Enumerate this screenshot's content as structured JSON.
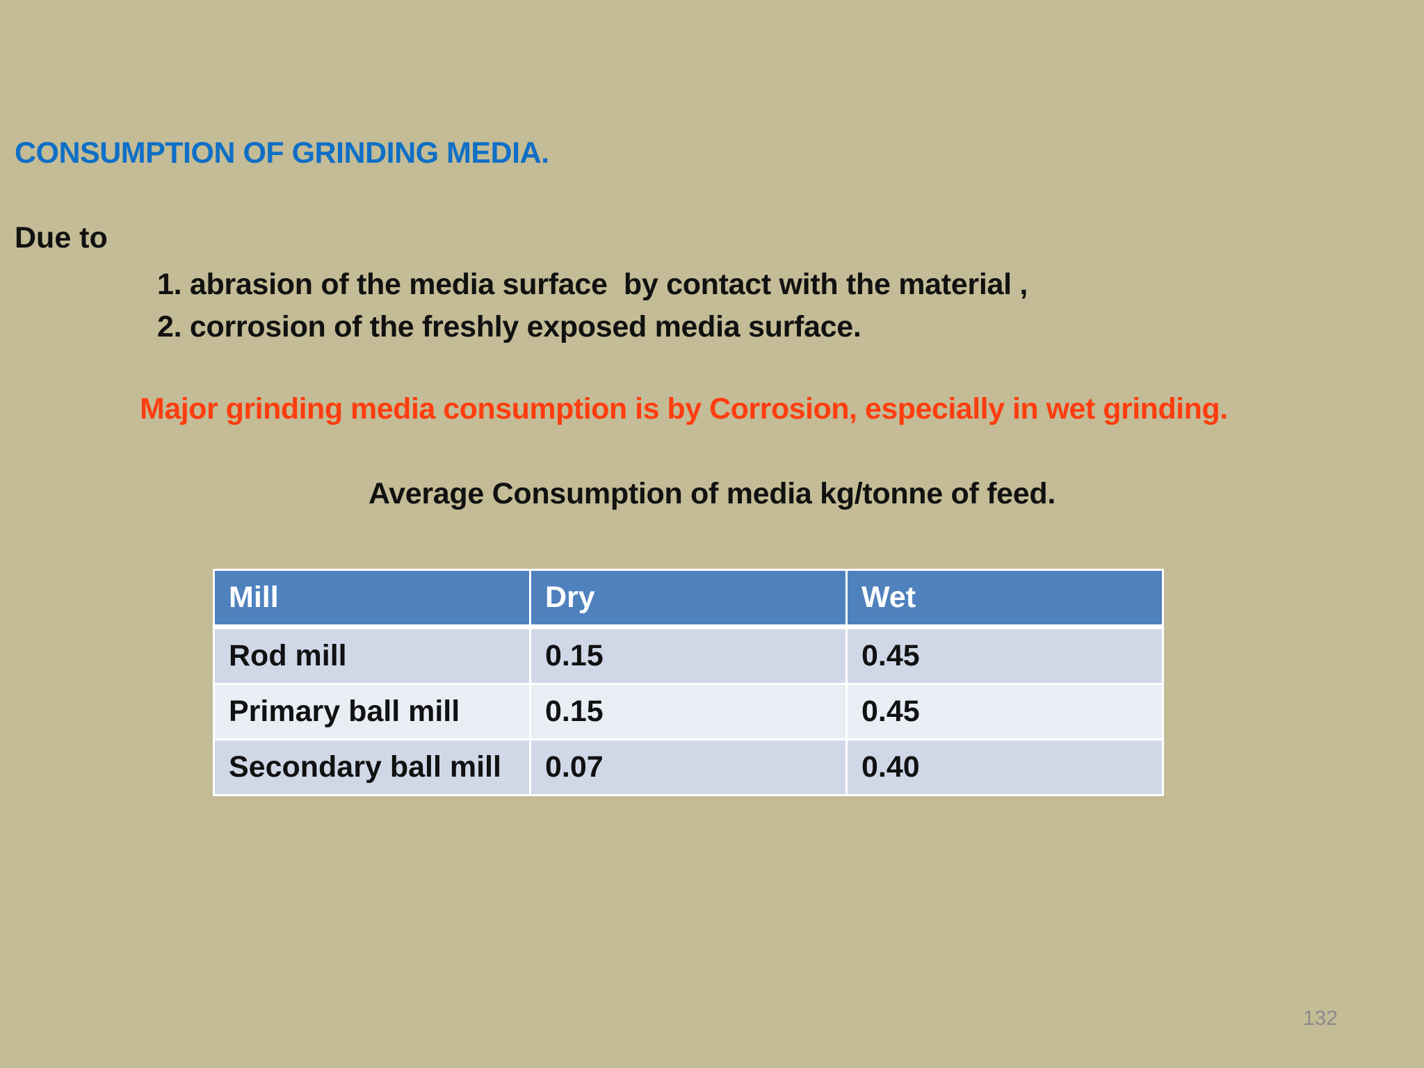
{
  "slide": {
    "heading": "CONSUMPTION OF GRINDING MEDIA.",
    "due_to": "Due to",
    "reasons": [
      "1. abrasion of the media surface  by contact with the material ,",
      "2. corrosion of the freshly exposed media surface."
    ],
    "highlight": "Major grinding media consumption is by Corrosion, especially in wet grinding.",
    "table_caption": "Average Consumption of media kg/tonne of feed.",
    "page_number": "132"
  },
  "colors": {
    "background": "#c4bc96",
    "heading": "#0f6fc6",
    "highlight": "#ff3d0f",
    "table_header": "#4f81bd",
    "table_row_odd": "#d0d8e8",
    "table_row_even": "#e9edf4"
  },
  "table": {
    "headers": [
      "Mill",
      "Dry",
      "Wet"
    ],
    "rows": [
      [
        "Rod mill",
        "0.15",
        "0.45"
      ],
      [
        "Primary ball mill",
        "0.15",
        "0.45"
      ],
      [
        "Secondary ball mill",
        "0.07",
        "0.40"
      ]
    ]
  }
}
